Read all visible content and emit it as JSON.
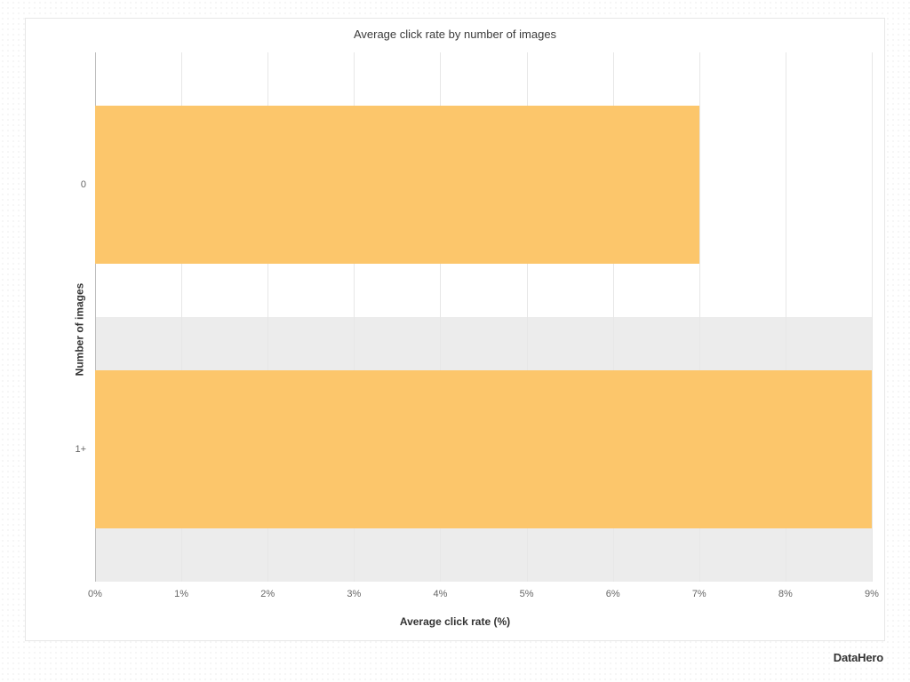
{
  "chart": {
    "type": "bar-horizontal",
    "title": "Average click rate by number of images",
    "title_fontsize": 13,
    "title_color": "#3a3a3a",
    "x_axis": {
      "label": "Average click rate (%)",
      "label_fontsize": 12,
      "label_fontweight": "700",
      "label_color": "#333333",
      "min": 0,
      "max": 9,
      "tick_step": 1,
      "ticks": [
        "0%",
        "1%",
        "2%",
        "3%",
        "4%",
        "5%",
        "6%",
        "7%",
        "8%",
        "9%"
      ],
      "tick_fontsize": 11,
      "tick_color": "#666666"
    },
    "y_axis": {
      "label": "Number of images",
      "label_fontsize": 12,
      "label_fontweight": "700",
      "label_color": "#333333",
      "categories": [
        "0",
        "1+"
      ],
      "tick_fontsize": 11,
      "tick_color": "#666666"
    },
    "series": {
      "values": [
        7,
        9
      ],
      "bar_color": "#fcc66b",
      "bar_height_fraction": 0.6
    },
    "row_backgrounds": [
      "#ffffff",
      "#ececec"
    ],
    "gridline_color": "#e7e7e7",
    "axis_line_color": "#bdbdbd",
    "card_border_color": "#e7e7e7",
    "card_background": "#ffffff",
    "page_background": "#ffffff",
    "dot_pattern_color": "#d9d9d9"
  },
  "brand": "DataHero"
}
